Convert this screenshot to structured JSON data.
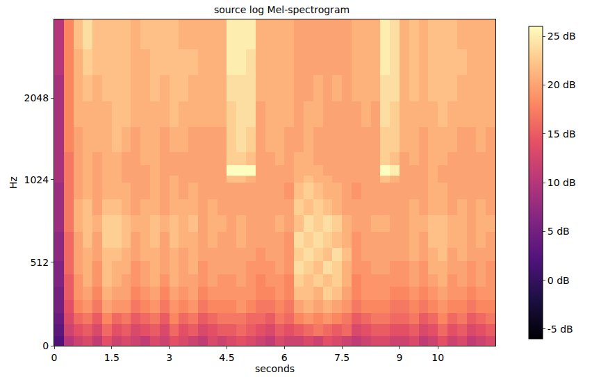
{
  "chart_data": {
    "type": "heatmap",
    "title": "source log Mel-spectrogram",
    "x_label": "seconds",
    "y_label": "Hz",
    "x": [
      0.125,
      0.375,
      0.625,
      0.875,
      1.125,
      1.375,
      1.625,
      1.875,
      2.125,
      2.375,
      2.625,
      2.875,
      3.125,
      3.375,
      3.625,
      3.875,
      4.125,
      4.375,
      4.625,
      4.875,
      5.125,
      5.375,
      5.625,
      5.875,
      6.125,
      6.375,
      6.625,
      6.875,
      7.125,
      7.375,
      7.625,
      7.875,
      8.125,
      8.375,
      8.625,
      8.875,
      9.125,
      9.375,
      9.625,
      9.875,
      10.125,
      10.375,
      10.625,
      10.875,
      11.125,
      11.375
    ],
    "y_bins": [
      0,
      60,
      130,
      200,
      280,
      360,
      440,
      520,
      600,
      700,
      800,
      900,
      1000,
      1060,
      1160,
      1300,
      1600,
      2000,
      2500,
      3100,
      4000
    ],
    "cells": [
      [
        2,
        10,
        12,
        13,
        11,
        14,
        12,
        13,
        12,
        11,
        13,
        12,
        14,
        13,
        12,
        11,
        13,
        12,
        13,
        14,
        13,
        12,
        11,
        13,
        12,
        12,
        13,
        12,
        14,
        13,
        12,
        11,
        12,
        13,
        13,
        12,
        12,
        13,
        11,
        12,
        14,
        12,
        13,
        11,
        12,
        13
      ],
      [
        3,
        12,
        14,
        15,
        13,
        16,
        14,
        15,
        13,
        14,
        15,
        13,
        16,
        14,
        15,
        13,
        14,
        15,
        15,
        16,
        15,
        14,
        13,
        15,
        14,
        15,
        16,
        17,
        16,
        15,
        16,
        13,
        14,
        15,
        15,
        14,
        14,
        15,
        13,
        14,
        16,
        14,
        15,
        13,
        14,
        15
      ],
      [
        4,
        13,
        16,
        17,
        15,
        18,
        16,
        17,
        15,
        16,
        17,
        15,
        18,
        16,
        17,
        15,
        16,
        17,
        17,
        17,
        16,
        16,
        15,
        17,
        16,
        18,
        19,
        18,
        19,
        18,
        17,
        15,
        16,
        17,
        17,
        16,
        16,
        17,
        15,
        16,
        18,
        16,
        17,
        15,
        16,
        17
      ],
      [
        5,
        14,
        18,
        19,
        17,
        20,
        19,
        19,
        17,
        18,
        19,
        17,
        19,
        18,
        19,
        17,
        18,
        18,
        18,
        19,
        18,
        17,
        17,
        18,
        17,
        20,
        21,
        20,
        21,
        20,
        19,
        17,
        18,
        18,
        18,
        17,
        17,
        18,
        17,
        18,
        19,
        18,
        18,
        17,
        18,
        18
      ],
      [
        5,
        15,
        19,
        20,
        18,
        21,
        20,
        20,
        18,
        19,
        20,
        18,
        20,
        19,
        20,
        18,
        19,
        19,
        19,
        19,
        19,
        18,
        18,
        19,
        18,
        22,
        22,
        21,
        23,
        22,
        20,
        18,
        19,
        19,
        19,
        18,
        18,
        19,
        18,
        19,
        20,
        19,
        19,
        18,
        19,
        19
      ],
      [
        6,
        15,
        19,
        21,
        19,
        22,
        21,
        20,
        19,
        20,
        21,
        19,
        21,
        20,
        20,
        19,
        20,
        19,
        19,
        20,
        19,
        18,
        19,
        19,
        18,
        23,
        22,
        23,
        22,
        23,
        21,
        18,
        19,
        19,
        19,
        19,
        19,
        20,
        19,
        20,
        21,
        19,
        20,
        19,
        20,
        19
      ],
      [
        6,
        16,
        20,
        21,
        19,
        22,
        21,
        21,
        19,
        20,
        21,
        20,
        21,
        20,
        21,
        19,
        20,
        20,
        20,
        20,
        19,
        19,
        19,
        20,
        19,
        24,
        23,
        22,
        24,
        23,
        21,
        19,
        19,
        20,
        20,
        19,
        19,
        20,
        19,
        21,
        21,
        20,
        20,
        19,
        20,
        19
      ],
      [
        7,
        16,
        20,
        21,
        20,
        22,
        22,
        21,
        20,
        21,
        21,
        20,
        21,
        20,
        21,
        20,
        20,
        20,
        20,
        20,
        20,
        19,
        20,
        20,
        19,
        23,
        24,
        23,
        22,
        24,
        22,
        19,
        20,
        20,
        20,
        20,
        20,
        21,
        20,
        21,
        22,
        20,
        21,
        20,
        20,
        20
      ],
      [
        7,
        16,
        20,
        22,
        20,
        23,
        23,
        22,
        20,
        21,
        22,
        20,
        22,
        21,
        21,
        20,
        21,
        20,
        20,
        21,
        20,
        20,
        20,
        20,
        19,
        24,
        23,
        24,
        23,
        22,
        21,
        19,
        20,
        20,
        20,
        20,
        20,
        21,
        20,
        22,
        22,
        21,
        21,
        20,
        21,
        20
      ],
      [
        8,
        17,
        21,
        22,
        21,
        23,
        23,
        22,
        21,
        21,
        22,
        21,
        22,
        21,
        22,
        20,
        21,
        21,
        20,
        21,
        20,
        20,
        20,
        21,
        20,
        22,
        24,
        23,
        24,
        23,
        21,
        20,
        20,
        21,
        21,
        20,
        20,
        21,
        21,
        22,
        22,
        21,
        21,
        20,
        21,
        21
      ],
      [
        8,
        17,
        21,
        22,
        20,
        22,
        22,
        21,
        20,
        21,
        21,
        20,
        21,
        21,
        21,
        20,
        21,
        20,
        20,
        20,
        20,
        20,
        20,
        20,
        20,
        23,
        22,
        23,
        22,
        21,
        20,
        20,
        20,
        20,
        20,
        20,
        20,
        21,
        20,
        21,
        21,
        20,
        21,
        20,
        21,
        20
      ],
      [
        8,
        17,
        20,
        21,
        20,
        21,
        21,
        21,
        20,
        20,
        21,
        20,
        21,
        20,
        21,
        20,
        20,
        20,
        20,
        20,
        20,
        20,
        20,
        20,
        19,
        22,
        23,
        22,
        21,
        21,
        20,
        19,
        20,
        20,
        20,
        20,
        20,
        20,
        20,
        21,
        21,
        20,
        20,
        20,
        20,
        20
      ],
      [
        9,
        17,
        20,
        21,
        20,
        21,
        21,
        20,
        20,
        20,
        21,
        20,
        21,
        20,
        20,
        20,
        20,
        20,
        22,
        22,
        21,
        20,
        20,
        20,
        20,
        21,
        22,
        21,
        21,
        20,
        20,
        20,
        20,
        20,
        22,
        21,
        20,
        20,
        20,
        21,
        20,
        20,
        20,
        20,
        20,
        20
      ],
      [
        9,
        17,
        20,
        21,
        20,
        21,
        21,
        20,
        20,
        20,
        21,
        20,
        20,
        20,
        20,
        20,
        20,
        20,
        26,
        26,
        26,
        20,
        20,
        20,
        20,
        21,
        21,
        21,
        20,
        20,
        20,
        20,
        20,
        20,
        26,
        25,
        20,
        20,
        20,
        21,
        20,
        20,
        20,
        20,
        20,
        20
      ],
      [
        9,
        17,
        20,
        21,
        20,
        21,
        21,
        20,
        20,
        21,
        21,
        20,
        20,
        20,
        20,
        20,
        20,
        20,
        23,
        23,
        22,
        20,
        20,
        21,
        20,
        21,
        21,
        20,
        20,
        20,
        20,
        20,
        20,
        20,
        23,
        22,
        20,
        21,
        20,
        21,
        21,
        20,
        20,
        20,
        20,
        20
      ],
      [
        9,
        18,
        20,
        21,
        21,
        21,
        22,
        21,
        20,
        21,
        21,
        20,
        21,
        21,
        20,
        20,
        20,
        20,
        23,
        24,
        23,
        20,
        21,
        21,
        20,
        20,
        21,
        20,
        20,
        20,
        20,
        20,
        20,
        20,
        23,
        23,
        21,
        21,
        20,
        21,
        21,
        21,
        20,
        20,
        21,
        20
      ],
      [
        9,
        18,
        21,
        21,
        21,
        21,
        22,
        22,
        21,
        21,
        21,
        21,
        22,
        21,
        21,
        21,
        21,
        21,
        23,
        24,
        24,
        20,
        21,
        21,
        21,
        20,
        21,
        21,
        20,
        20,
        20,
        20,
        21,
        20,
        24,
        23,
        21,
        21,
        21,
        21,
        22,
        21,
        21,
        21,
        21,
        21
      ],
      [
        9,
        18,
        21,
        22,
        21,
        22,
        22,
        22,
        21,
        21,
        22,
        21,
        22,
        22,
        21,
        21,
        21,
        21,
        24,
        24,
        24,
        21,
        21,
        21,
        21,
        20,
        20,
        21,
        20,
        21,
        20,
        21,
        21,
        21,
        24,
        24,
        21,
        22,
        21,
        22,
        22,
        22,
        21,
        21,
        21,
        21
      ],
      [
        10,
        18,
        21,
        23,
        22,
        22,
        22,
        22,
        21,
        21,
        22,
        22,
        22,
        22,
        22,
        21,
        21,
        21,
        25,
        25,
        24,
        21,
        21,
        21,
        21,
        20,
        20,
        20,
        20,
        20,
        20,
        21,
        21,
        21,
        25,
        24,
        21,
        22,
        21,
        22,
        22,
        22,
        22,
        21,
        21,
        21
      ],
      [
        10,
        18,
        22,
        24,
        22,
        22,
        22,
        22,
        21,
        22,
        22,
        22,
        22,
        21,
        21,
        21,
        21,
        21,
        25,
        25,
        25,
        21,
        21,
        21,
        21,
        20,
        20,
        20,
        20,
        20,
        20,
        21,
        21,
        21,
        25,
        24,
        21,
        22,
        21,
        22,
        22,
        22,
        21,
        21,
        21,
        21
      ]
    ],
    "xlim": [
      0,
      11.5
    ],
    "xticks": [
      0,
      1.5,
      3,
      4.5,
      6,
      7.5,
      9,
      10
    ],
    "ylim": [
      0,
      4000
    ],
    "yticks": [
      0,
      512,
      1024,
      2048
    ],
    "zlim": [
      -6,
      26
    ],
    "zticks": [
      {
        "value": -5,
        "label": "-5 dB"
      },
      {
        "value": 0,
        "label": "0 dB"
      },
      {
        "value": 5,
        "label": "5 dB"
      },
      {
        "value": 10,
        "label": "10 dB"
      },
      {
        "value": 15,
        "label": "15 dB"
      },
      {
        "value": 20,
        "label": "20 dB"
      },
      {
        "value": 25,
        "label": "25 dB"
      }
    ],
    "grid": false
  }
}
